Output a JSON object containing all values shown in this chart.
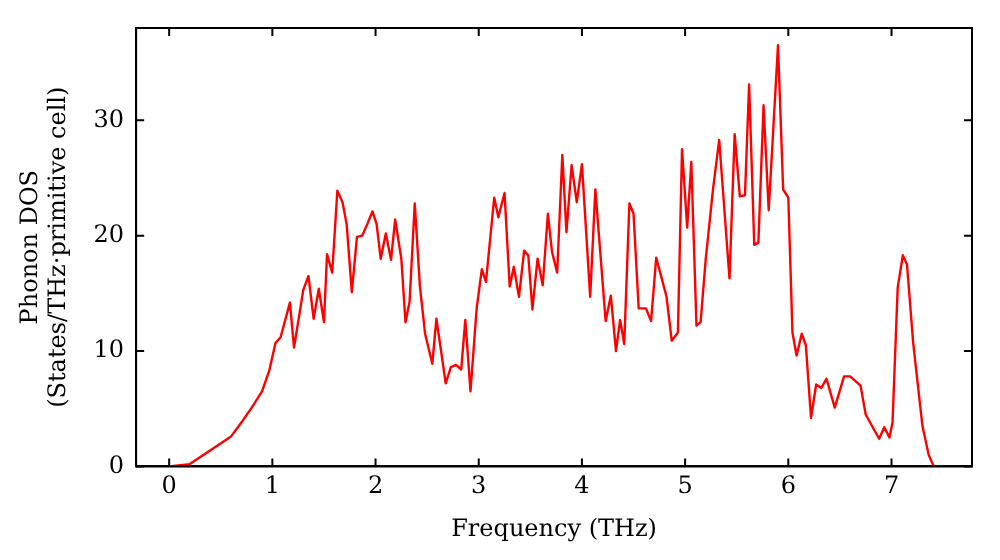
{
  "chart_data": {
    "type": "line",
    "xlabel": "Frequency (THz)",
    "ylabel": "Phonon DOS\n(States/THz·primitive cell)",
    "xlim": [
      -0.32,
      7.78
    ],
    "ylim": [
      0,
      38
    ],
    "xticks": [
      0,
      1,
      2,
      3,
      4,
      5,
      6,
      7
    ],
    "yticks": [
      0,
      10,
      20,
      30
    ],
    "grid": false,
    "legend": false,
    "marker": "none",
    "line_style": "solid",
    "series": [
      {
        "color": "#ff0000",
        "x": [
          0,
          0.2,
          0.4,
          0.6,
          0.7,
          0.8,
          0.9,
          0.97,
          1.03,
          1.08,
          1.17,
          1.21,
          1.3,
          1.35,
          1.4,
          1.45,
          1.5,
          1.53,
          1.58,
          1.63,
          1.68,
          1.72,
          1.77,
          1.82,
          1.87,
          1.92,
          1.97,
          2.01,
          2.05,
          2.1,
          2.15,
          2.19,
          2.25,
          2.29,
          2.33,
          2.38,
          2.43,
          2.48,
          2.55,
          2.59,
          2.68,
          2.73,
          2.78,
          2.83,
          2.87,
          2.92,
          2.98,
          3.03,
          3.07,
          3.15,
          3.19,
          3.25,
          3.3,
          3.34,
          3.39,
          3.44,
          3.48,
          3.52,
          3.57,
          3.62,
          3.67,
          3.71,
          3.76,
          3.81,
          3.85,
          3.9,
          3.95,
          4.0,
          4.08,
          4.13,
          4.23,
          4.28,
          4.33,
          4.37,
          4.41,
          4.46,
          4.5,
          4.55,
          4.62,
          4.67,
          4.72,
          4.82,
          4.87,
          4.93,
          4.97,
          5.02,
          5.06,
          5.11,
          5.15,
          5.2,
          5.27,
          5.33,
          5.43,
          5.48,
          5.53,
          5.58,
          5.62,
          5.67,
          5.71,
          5.76,
          5.81,
          5.9,
          5.95,
          6.0,
          6.04,
          6.08,
          6.13,
          6.17,
          6.22,
          6.27,
          6.32,
          6.37,
          6.45,
          6.54,
          6.6,
          6.7,
          6.75,
          6.83,
          6.88,
          6.93,
          6.98,
          7.01,
          7.06,
          7.11,
          7.15,
          7.21,
          7.3,
          7.36,
          7.41,
          7.5
        ],
        "values": [
          0,
          0.2,
          1.4,
          2.6,
          3.8,
          5.1,
          6.5,
          8.3,
          10.7,
          11.2,
          14.2,
          10.3,
          15.3,
          16.5,
          12.8,
          15.4,
          12.5,
          18.4,
          16.8,
          23.9,
          22.9,
          21,
          15.1,
          19.9,
          20,
          21,
          22.1,
          21,
          18,
          20.2,
          17.9,
          21.4,
          18,
          12.5,
          14.3,
          22.8,
          15.6,
          11.5,
          8.9,
          12.8,
          7.2,
          8.6,
          8.8,
          8.4,
          12.7,
          6.5,
          13.7,
          17.1,
          16,
          23.3,
          21.6,
          23.7,
          15.6,
          17.3,
          14.7,
          18.7,
          18.3,
          13.6,
          18,
          15.7,
          21.9,
          18.6,
          16.8,
          27,
          20.3,
          26.1,
          22.9,
          26.2,
          14.7,
          24,
          12.6,
          14.8,
          10,
          12.7,
          10.6,
          22.8,
          21.9,
          13.7,
          13.7,
          12.6,
          18.1,
          14.7,
          10.9,
          11.6,
          27.5,
          20.7,
          26.4,
          12.2,
          12.5,
          18,
          24,
          28.3,
          16.3,
          28.8,
          23.4,
          23.5,
          33.1,
          19.2,
          19.4,
          31.3,
          22.2,
          36.5,
          24,
          23.3,
          11.6,
          9.6,
          11.5,
          10.5,
          4.2,
          7.1,
          6.8,
          7.6,
          5.1,
          7.8,
          7.8,
          7,
          4.5,
          3.2,
          2.4,
          3.4,
          2.5,
          3.8,
          15.5,
          18.3,
          17.5,
          10.7,
          3.5,
          1,
          0,
          0
        ]
      }
    ]
  }
}
